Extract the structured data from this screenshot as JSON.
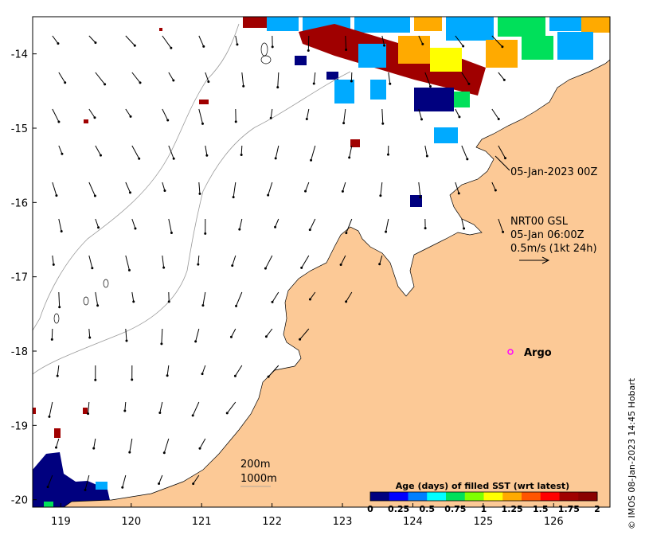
{
  "map": {
    "lon_ticks": [
      "119",
      "120",
      "121",
      "122",
      "123",
      "124",
      "125",
      "126"
    ],
    "lat_ticks": [
      "-14",
      "-15",
      "-16",
      "-17",
      "-18",
      "-19",
      "-20"
    ],
    "lon_range": [
      118.6,
      126.8
    ],
    "lat_range": [
      -20.1,
      -13.5
    ],
    "colors": {
      "land": "#fcc996",
      "ocean": "#ffffff",
      "contour": "#999999",
      "arrow": "#000000",
      "argo_marker": "#ff00ff"
    }
  },
  "annotations": {
    "timestamp_label": "05-Jan-2023 00Z",
    "current_source": "NRT00 GSL",
    "current_time": "05-Jan 06:00Z",
    "current_scale": "0.5m/s (1kt 24h)",
    "argo_label": "Argo",
    "contour_200": "200m",
    "contour_1000": "1000m",
    "credit": "© IMOS 08-Jan-2023 14:45 Hobart"
  },
  "colorbar": {
    "title": "Age (days) of filled SST (wrt latest)",
    "ticks": [
      "0",
      "0.25",
      "0.5",
      "0.75",
      "1",
      "1.25",
      "1.5",
      "1.75",
      "2"
    ],
    "range": [
      0,
      2
    ],
    "colors": [
      "#00007f",
      "#0000ff",
      "#007fff",
      "#00ffff",
      "#00e05a",
      "#7fff00",
      "#ffff00",
      "#ffaa00",
      "#ff5500",
      "#ff0000",
      "#a00000",
      "#8a0000"
    ]
  }
}
